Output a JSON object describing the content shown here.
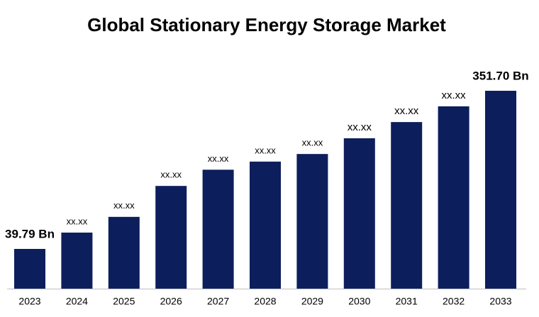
{
  "chart_data": {
    "type": "bar",
    "title": "Global Stationary Energy Storage Market",
    "categories": [
      "2023",
      "2024",
      "2025",
      "2026",
      "2027",
      "2028",
      "2029",
      "2030",
      "2031",
      "2032",
      "2033"
    ],
    "values": [
      39.79,
      72,
      103,
      164,
      196,
      212,
      227,
      258,
      290,
      321,
      351.7
    ],
    "value_labels": [
      "39.79 Bn",
      "xx.xx",
      "xx.xx",
      "xx.xx",
      "xx.xx",
      "xx.xx",
      "xx.xx",
      "xx.xx",
      "xx.xx",
      "xx.xx",
      "351.70 Bn"
    ],
    "color": "#0c1f5c"
  }
}
